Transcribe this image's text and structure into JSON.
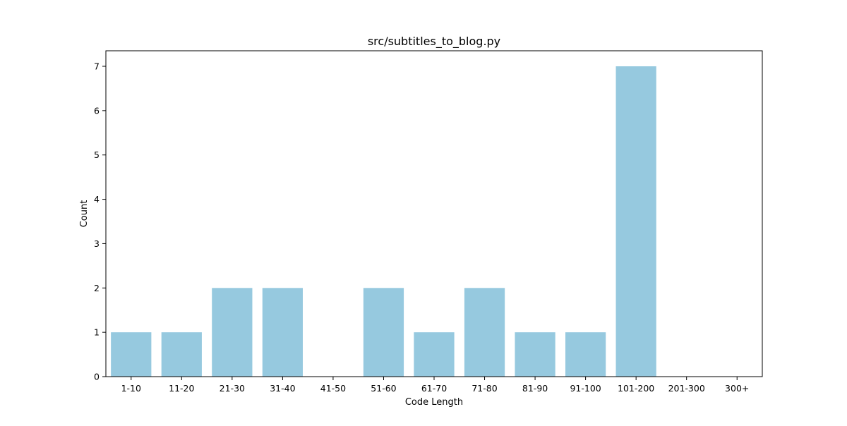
{
  "colors": {
    "bar": "#96c9df",
    "axis": "#000000",
    "background": "#ffffff"
  },
  "chart_data": {
    "type": "bar",
    "title": "src/subtitles_to_blog.py",
    "xlabel": "Code Length",
    "ylabel": "Count",
    "categories": [
      "1-10",
      "11-20",
      "21-30",
      "31-40",
      "41-50",
      "51-60",
      "61-70",
      "71-80",
      "81-90",
      "91-100",
      "101-200",
      "201-300",
      "300+"
    ],
    "values": [
      1,
      1,
      2,
      2,
      0,
      2,
      1,
      2,
      1,
      1,
      7,
      0,
      0
    ],
    "ylim": [
      0,
      7.35
    ],
    "yticks": [
      0,
      1,
      2,
      3,
      4,
      5,
      6,
      7
    ],
    "grid": false,
    "legend": "none"
  }
}
